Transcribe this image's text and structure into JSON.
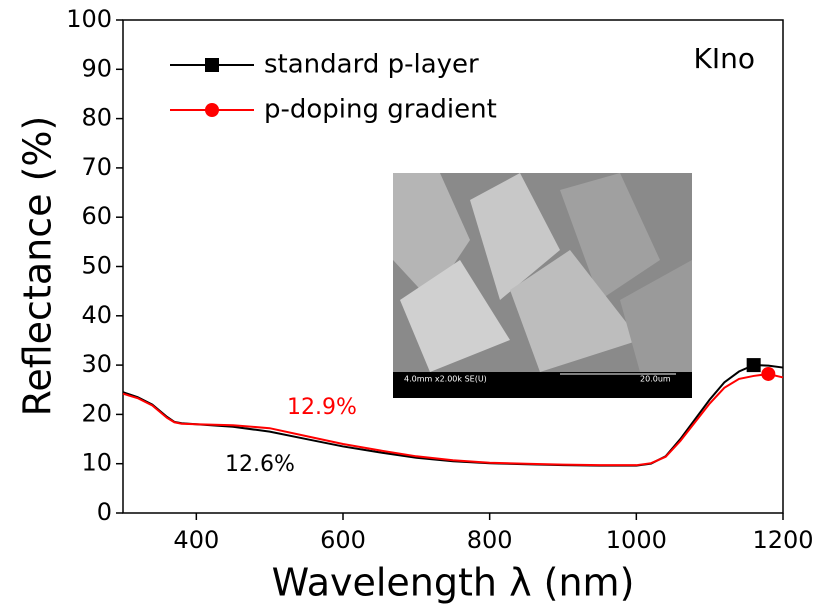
{
  "chart_data": {
    "type": "line",
    "x_label": "Wavelength λ (nm)",
    "y_label": "Reflectance (%)",
    "x": [
      300,
      320,
      340,
      360,
      370,
      380,
      400,
      450,
      500,
      550,
      600,
      650,
      700,
      750,
      800,
      850,
      900,
      950,
      1000,
      1020,
      1040,
      1060,
      1080,
      1100,
      1120,
      1140,
      1160,
      1180,
      1200
    ],
    "series": [
      {
        "name": "standard p-layer",
        "color": "#000000",
        "marker": "square",
        "values": [
          24.5,
          23.5,
          22,
          19.5,
          18.5,
          18.2,
          18,
          17.5,
          16.5,
          15,
          13.5,
          12.3,
          11.2,
          10.5,
          10.1,
          9.9,
          9.7,
          9.6,
          9.6,
          10,
          11.5,
          15,
          19,
          23,
          26.5,
          28.7,
          30,
          29.9,
          29.5
        ]
      },
      {
        "name": "p-doping gradient",
        "color": "#ff0000",
        "marker": "circle",
        "values": [
          24.2,
          23.3,
          21.8,
          19.3,
          18.4,
          18.1,
          18,
          17.8,
          17.2,
          15.6,
          14,
          12.7,
          11.5,
          10.7,
          10.2,
          10,
          9.8,
          9.7,
          9.7,
          10.1,
          11.4,
          14.6,
          18.4,
          22.2,
          25.4,
          27.2,
          27.8,
          28.2,
          27.5
        ]
      }
    ],
    "xlim": [
      300,
      1200
    ],
    "xticks": [
      400,
      600,
      800,
      1000,
      1200
    ],
    "ylim": [
      0,
      100
    ],
    "yticks": [
      0,
      10,
      20,
      30,
      40,
      50,
      60,
      70,
      80,
      90,
      100
    ],
    "annotations": [
      {
        "text": "12.9%",
        "color": "#ff0000"
      },
      {
        "text": "12.6%",
        "color": "#000000"
      },
      {
        "text": "KIno",
        "color": "#000000"
      }
    ],
    "inset": {
      "scale_text": "4.0mm x2.00k SE(U)",
      "scale_bar": "20.0um"
    }
  }
}
